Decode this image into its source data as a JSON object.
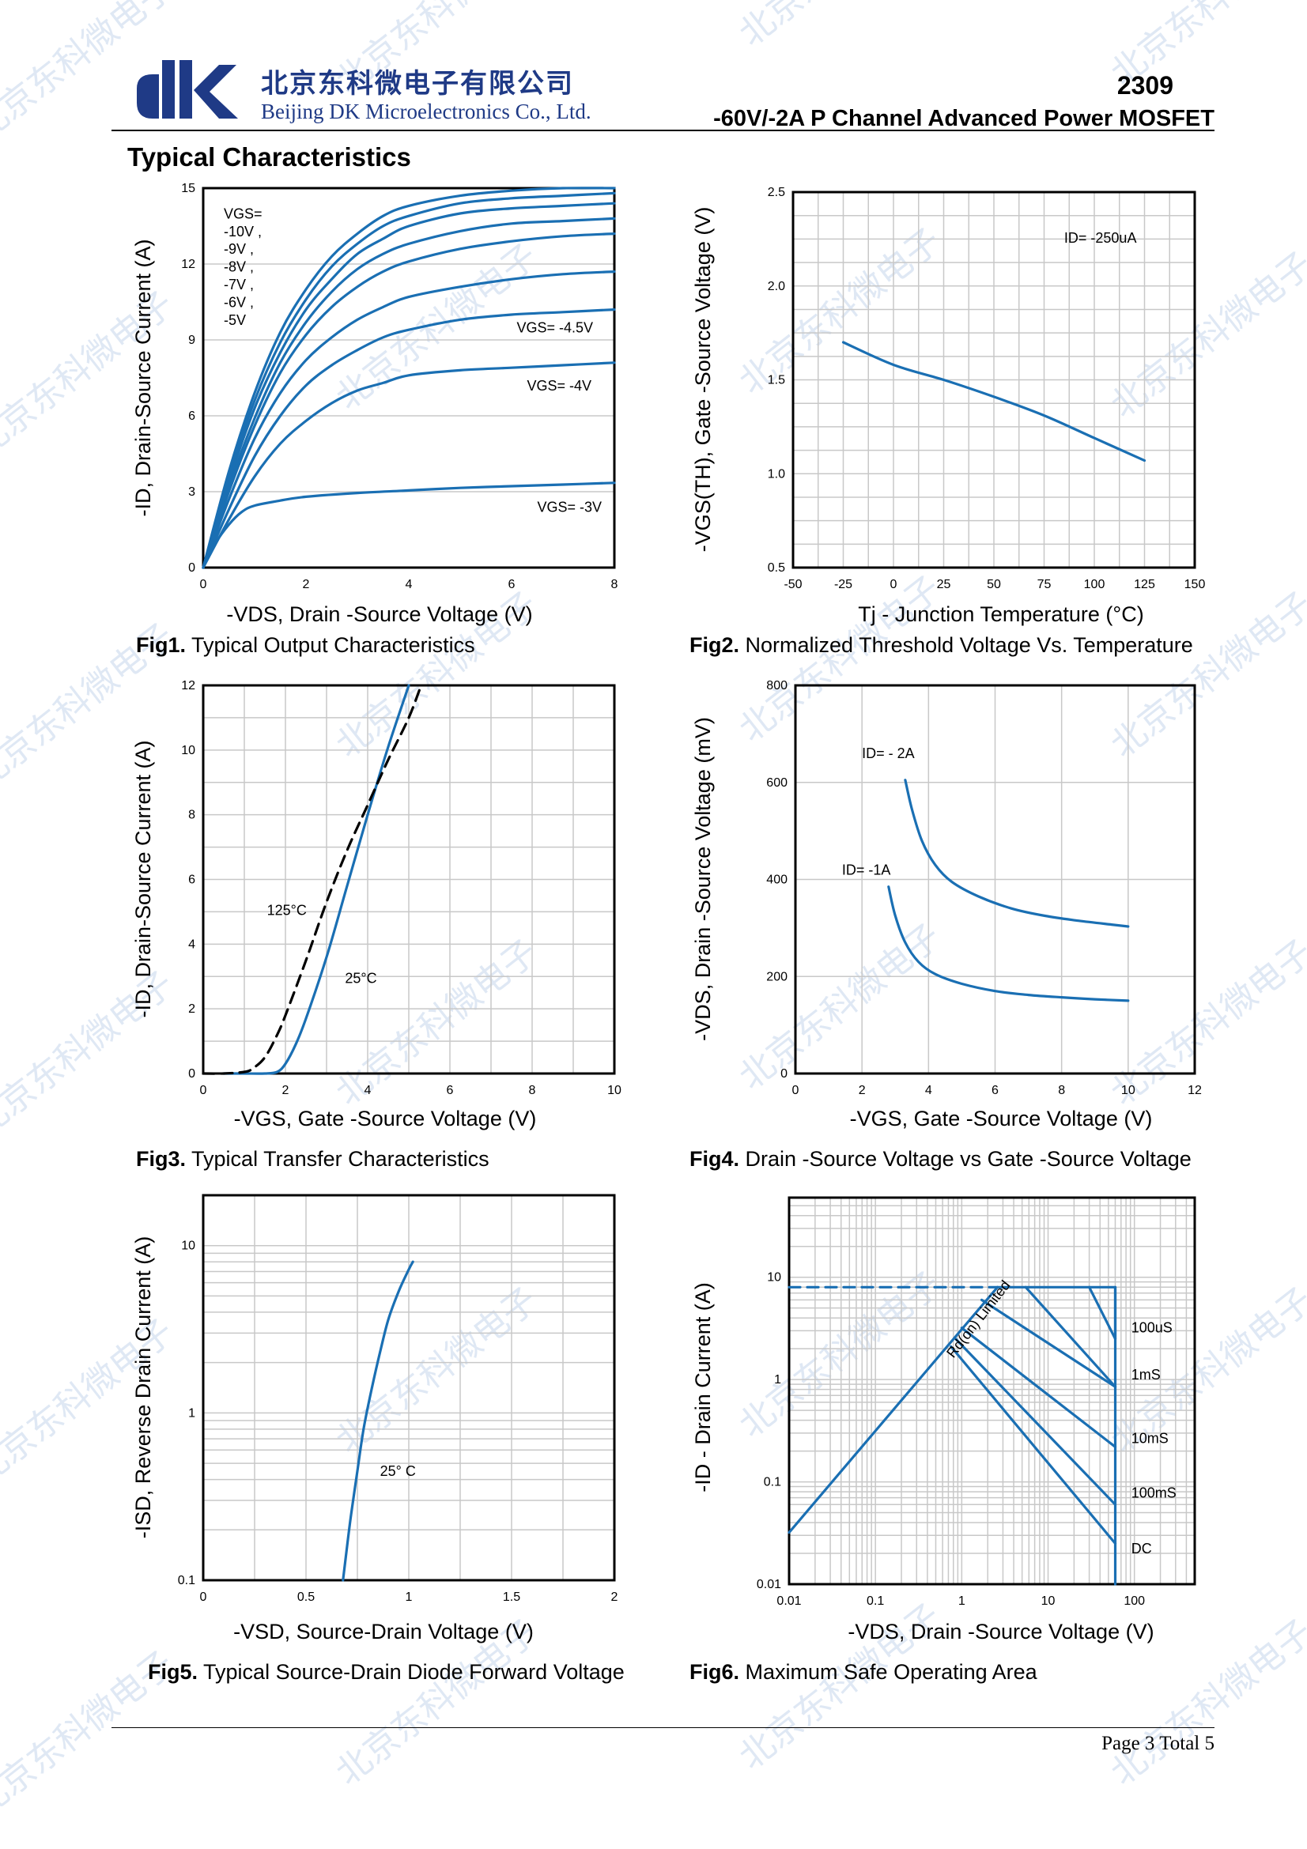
{
  "header": {
    "company_cn": "北京东科微电子有限公司",
    "company_en": "Beijing DK Microelectronics Co., Ltd.",
    "part_number": "2309",
    "subtitle": "-60V/-2A P Channel Advanced Power MOSFET"
  },
  "section_title": "Typical Characteristics",
  "watermark_text": "北京东科微电子",
  "footer": {
    "text": "Page  3  Total  5"
  },
  "colors": {
    "curve": "#1a6fb3",
    "grid": "#c8c8c8",
    "logo": "#1f3a86"
  },
  "chart_data": [
    {
      "id": "fig1",
      "type": "line",
      "caption_bold": "Fig1.",
      "caption": " Typical Output Characteristics",
      "xlabel": "-VDS, Drain -Source Voltage (V)",
      "ylabel": "-ID, Drain-Source Current (A)",
      "xlim": [
        0,
        8
      ],
      "ylim": [
        0,
        15
      ],
      "xticks": [
        0,
        2,
        4,
        6,
        8
      ],
      "yticks": [
        0,
        3,
        6,
        9,
        12,
        15
      ],
      "xscale": "linear",
      "yscale": "linear",
      "grid": "horizontal",
      "annotations": [
        {
          "text": "VGS=",
          "x": 0.4,
          "y": 13.8
        },
        {
          "text": "-10V ,",
          "x": 0.4,
          "y": 13.1
        },
        {
          "text": "-9V ,",
          "x": 0.4,
          "y": 12.4
        },
        {
          "text": "-8V ,",
          "x": 0.4,
          "y": 11.7
        },
        {
          "text": "-7V ,",
          "x": 0.4,
          "y": 11.0
        },
        {
          "text": "-6V ,",
          "x": 0.4,
          "y": 10.3
        },
        {
          "text": "-5V",
          "x": 0.4,
          "y": 9.6
        },
        {
          "text": "VGS= -4.5V",
          "x": 6.1,
          "y": 9.3
        },
        {
          "text": "VGS= -4V",
          "x": 6.3,
          "y": 7.0
        },
        {
          "text": "VGS= -3V",
          "x": 6.5,
          "y": 2.2
        }
      ],
      "series": [
        {
          "x": [
            0,
            0.5,
            1,
            1.5,
            2,
            2.5,
            3,
            3.5,
            4,
            5,
            6,
            7,
            8
          ],
          "y": [
            0,
            3.8,
            6.9,
            9.3,
            11.0,
            12.3,
            13.2,
            13.9,
            14.3,
            14.7,
            14.9,
            15.0,
            15.0
          ]
        },
        {
          "x": [
            0,
            0.5,
            1,
            1.5,
            2,
            2.5,
            3,
            3.5,
            4,
            5,
            6,
            7,
            8
          ],
          "y": [
            0,
            3.6,
            6.6,
            8.9,
            10.6,
            11.9,
            12.8,
            13.5,
            13.9,
            14.4,
            14.6,
            14.7,
            14.8
          ]
        },
        {
          "x": [
            0,
            0.5,
            1,
            1.5,
            2,
            2.5,
            3,
            3.5,
            4,
            5,
            6,
            7,
            8
          ],
          "y": [
            0,
            3.4,
            6.3,
            8.5,
            10.2,
            11.4,
            12.4,
            13.0,
            13.5,
            14.0,
            14.2,
            14.3,
            14.4
          ]
        },
        {
          "x": [
            0,
            0.5,
            1,
            1.5,
            2,
            2.5,
            3,
            3.5,
            4,
            5,
            6,
            7,
            8
          ],
          "y": [
            0,
            3.2,
            5.9,
            8.1,
            9.7,
            10.9,
            11.8,
            12.4,
            12.8,
            13.3,
            13.6,
            13.7,
            13.8
          ]
        },
        {
          "x": [
            0,
            0.5,
            1,
            1.5,
            2,
            2.5,
            3,
            3.5,
            4,
            5,
            6,
            7,
            8
          ],
          "y": [
            0,
            3.0,
            5.6,
            7.7,
            9.2,
            10.3,
            11.1,
            11.7,
            12.1,
            12.6,
            12.9,
            13.1,
            13.2
          ]
        },
        {
          "x": [
            0,
            0.5,
            1,
            1.5,
            2,
            2.5,
            3,
            3.5,
            4,
            5,
            6,
            7,
            8
          ],
          "y": [
            0,
            2.7,
            5.1,
            6.9,
            8.2,
            9.1,
            9.8,
            10.3,
            10.7,
            11.1,
            11.4,
            11.6,
            11.7
          ]
        },
        {
          "x": [
            0,
            0.5,
            1,
            1.5,
            2,
            2.5,
            3,
            3.5,
            4,
            5,
            6,
            7,
            8
          ],
          "y": [
            0,
            2.3,
            4.4,
            6.0,
            7.2,
            8.0,
            8.6,
            9.1,
            9.4,
            9.8,
            10.0,
            10.1,
            10.2
          ]
        },
        {
          "x": [
            0,
            0.5,
            1,
            1.5,
            2,
            2.5,
            3,
            3.5,
            4,
            5,
            6,
            7,
            8
          ],
          "y": [
            0,
            1.9,
            3.6,
            4.9,
            5.8,
            6.5,
            7.0,
            7.3,
            7.6,
            7.8,
            7.9,
            8.0,
            8.1
          ]
        },
        {
          "x": [
            0,
            0.25,
            0.5,
            0.75,
            1,
            1.5,
            2,
            3,
            4,
            5,
            6,
            7,
            8
          ],
          "y": [
            0,
            1.0,
            1.7,
            2.2,
            2.45,
            2.65,
            2.8,
            2.95,
            3.05,
            3.15,
            3.22,
            3.28,
            3.35
          ]
        }
      ]
    },
    {
      "id": "fig2",
      "type": "line",
      "caption_bold": "Fig2.",
      "caption": " Normalized Threshold Voltage Vs. Temperature",
      "xlabel": "Tj - Junction Temperature (°C)",
      "ylabel": "-VGS(TH), Gate -Source Voltage (V)",
      "xlim": [
        -50,
        150
      ],
      "ylim": [
        0.5,
        2.5
      ],
      "xticks": [
        -50,
        -25,
        0,
        25,
        50,
        75,
        100,
        125,
        150
      ],
      "yticks": [
        0.5,
        1.0,
        1.5,
        2.0,
        2.5
      ],
      "ytick_labels": [
        "0.5",
        "1.0",
        "1.5",
        "2.0",
        "2.5"
      ],
      "xscale": "linear",
      "yscale": "linear",
      "grid": "both",
      "xgrid_step": 12.5,
      "ygrid_step": 0.125,
      "annotations": [
        {
          "text": "ID= -250uA",
          "x": 85,
          "y": 2.23
        }
      ],
      "series": [
        {
          "x": [
            -25,
            0,
            25,
            50,
            75,
            100,
            125
          ],
          "y": [
            1.7,
            1.58,
            1.5,
            1.41,
            1.31,
            1.19,
            1.07
          ]
        }
      ]
    },
    {
      "id": "fig3",
      "type": "line",
      "caption_bold": "Fig3.",
      "caption": " Typical Transfer Characteristics",
      "xlabel": "-VGS, Gate -Source Voltage (V)",
      "ylabel": "-ID, Drain-Source Current (A)",
      "xlim": [
        0,
        10
      ],
      "ylim": [
        0,
        12
      ],
      "xticks": [
        0,
        2,
        4,
        6,
        8,
        10
      ],
      "yticks": [
        0,
        2,
        4,
        6,
        8,
        10,
        12
      ],
      "xscale": "linear",
      "yscale": "linear",
      "grid": "both",
      "xgrid_step": 1,
      "ygrid_step": 1,
      "annotations": [
        {
          "text": "125°C",
          "x": 1.55,
          "y": 4.9
        },
        {
          "text": "25°C",
          "x": 3.45,
          "y": 2.8
        }
      ],
      "series": [
        {
          "name": "25°C",
          "dash": false,
          "x": [
            0.5,
            1,
            1.5,
            1.8,
            2,
            2.25,
            2.5,
            3,
            3.5,
            4,
            4.5,
            5
          ],
          "y": [
            0,
            0,
            0,
            0.05,
            0.3,
            0.9,
            1.7,
            3.6,
            5.8,
            8.0,
            10.1,
            12.0
          ]
        },
        {
          "name": "125°C",
          "dash": true,
          "x": [
            0,
            0.5,
            1,
            1.2,
            1.5,
            1.8,
            2,
            2.5,
            3,
            3.5,
            4,
            4.5,
            5,
            5.3
          ],
          "y": [
            0,
            0,
            0.05,
            0.15,
            0.5,
            1.2,
            1.8,
            3.5,
            5.3,
            6.9,
            8.3,
            9.7,
            11.0,
            12.0
          ]
        }
      ]
    },
    {
      "id": "fig4",
      "type": "line",
      "caption_bold": "Fig4.",
      "caption": " Drain -Source Voltage vs Gate -Source Voltage",
      "xlabel": "-VGS, Gate -Source Voltage (V)",
      "ylabel": "-VDS, Drain -Source Voltage (mV)",
      "xlim": [
        0,
        12
      ],
      "ylim": [
        0,
        800
      ],
      "xticks": [
        0,
        2,
        4,
        6,
        8,
        10,
        12
      ],
      "yticks": [
        0,
        200,
        400,
        600,
        800
      ],
      "xscale": "linear",
      "yscale": "linear",
      "grid": "both",
      "xgrid_step": 2,
      "ygrid_step": 200,
      "annotations": [
        {
          "text": "ID= - 2A",
          "x": 2.0,
          "y": 650
        },
        {
          "text": "ID= -1A",
          "x": 1.4,
          "y": 410
        }
      ],
      "series": [
        {
          "x": [
            3.3,
            3.5,
            3.8,
            4.2,
            4.7,
            5.5,
            6.5,
            7.5,
            8.5,
            9.5,
            10
          ],
          "y": [
            605,
            545,
            480,
            430,
            395,
            365,
            340,
            325,
            315,
            307,
            303
          ]
        },
        {
          "x": [
            2.8,
            3.0,
            3.3,
            3.7,
            4.2,
            5,
            6,
            7,
            8,
            9,
            10
          ],
          "y": [
            385,
            325,
            270,
            230,
            205,
            185,
            170,
            162,
            157,
            153,
            150
          ]
        }
      ]
    },
    {
      "id": "fig5",
      "type": "line",
      "caption_bold": "Fig5.",
      "caption": " Typical Source-Drain Diode Forward Voltage",
      "xlabel": "-VSD, Source-Drain Voltage (V)",
      "ylabel": "-ISD, Reverse Drain Current (A)",
      "xlim": [
        0,
        2
      ],
      "ylim": [
        0.1,
        20
      ],
      "xticks": [
        0,
        0.5,
        1,
        1.5,
        2
      ],
      "xtick_labels": [
        "0",
        "0.5",
        "1",
        "1.5",
        "2"
      ],
      "yticks": [
        0.1,
        1,
        10
      ],
      "ytick_labels": [
        "0.1",
        "1",
        "10"
      ],
      "xscale": "linear",
      "yscale": "log",
      "grid": "both",
      "xgrid_step": 0.25,
      "annotations": [
        {
          "text": "25°  C",
          "x": 0.86,
          "y": 0.42
        }
      ],
      "series": [
        {
          "x": [
            0.68,
            0.7,
            0.72,
            0.75,
            0.78,
            0.82,
            0.86,
            0.9,
            0.95,
            1.0,
            1.02
          ],
          "y": [
            0.1,
            0.16,
            0.25,
            0.45,
            0.8,
            1.4,
            2.3,
            3.6,
            5.3,
            7.2,
            8.0
          ]
        }
      ]
    },
    {
      "id": "fig6",
      "type": "line",
      "caption_bold": "Fig6.",
      "caption": " Maximum Safe Operating Area",
      "xlabel": "-VDS, Drain -Source Voltage (V)",
      "ylabel": "-ID - Drain Current (A)",
      "xlim": [
        0.01,
        500
      ],
      "ylim": [
        0.01,
        60
      ],
      "xticks": [
        0.01,
        0.1,
        1,
        10,
        100
      ],
      "xtick_labels": [
        "0.01",
        "0.1",
        "1",
        "10",
        "100"
      ],
      "yticks": [
        0.01,
        0.1,
        1,
        10
      ],
      "ytick_labels": [
        "0.01",
        "0.1",
        "1",
        "10"
      ],
      "xscale": "log",
      "yscale": "log",
      "grid": "both",
      "annotations": [
        {
          "text": "100uS",
          "x": 92,
          "y": 2.9
        },
        {
          "text": "1mS",
          "x": 92,
          "y": 1.0
        },
        {
          "text": "10mS",
          "x": 92,
          "y": 0.24
        },
        {
          "text": "100mS",
          "x": 92,
          "y": 0.07
        },
        {
          "text": "DC",
          "x": 92,
          "y": 0.02
        }
      ],
      "rotated_annotation": {
        "text": "Rd(on) Limited",
        "x": 0.8,
        "y": 1.6,
        "angle": -52
      },
      "series": [
        {
          "name": "dashed-limit",
          "dash": true,
          "x": [
            0.01,
            2.6
          ],
          "y": [
            8,
            8
          ]
        },
        {
          "name": "Rd(on) Limited",
          "dash": false,
          "x": [
            0.01,
            2.6
          ],
          "y": [
            0.032,
            8
          ]
        },
        {
          "name": "100uS",
          "dash": false,
          "x": [
            2.6,
            60,
            60
          ],
          "y": [
            8,
            8,
            2.5
          ]
        },
        {
          "name": "100uS-box",
          "dash": false,
          "x": [
            30,
            60
          ],
          "y": [
            8,
            2.5
          ]
        },
        {
          "name": "1mS",
          "dash": false,
          "x": [
            1.7,
            60
          ],
          "y": [
            6,
            0.85
          ]
        },
        {
          "name": "10mS",
          "dash": false,
          "x": [
            1.0,
            60
          ],
          "y": [
            3.2,
            0.22
          ]
        },
        {
          "name": "100mS",
          "dash": false,
          "x": [
            0.85,
            60
          ],
          "y": [
            2.5,
            0.06
          ]
        },
        {
          "name": "DC",
          "dash": false,
          "x": [
            0.75,
            60
          ],
          "y": [
            2.1,
            0.025
          ]
        },
        {
          "name": "1mS-top",
          "dash": false,
          "x": [
            5.5,
            60
          ],
          "y": [
            8,
            0.85
          ]
        },
        {
          "name": "DC-vert",
          "dash": false,
          "x": [
            60,
            60
          ],
          "y": [
            8,
            0.01
          ]
        }
      ]
    }
  ]
}
